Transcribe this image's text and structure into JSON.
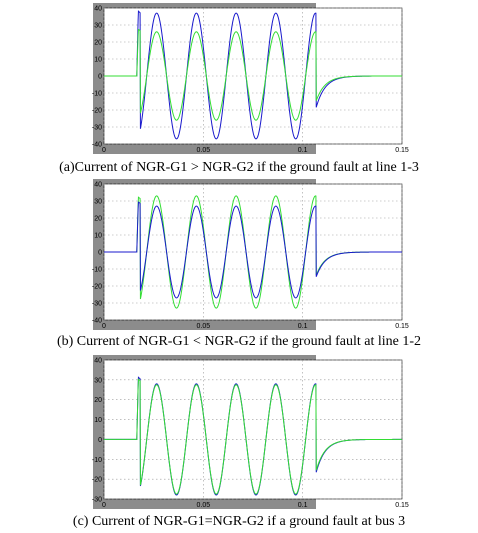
{
  "figures": [
    {
      "caption": "(a)Current of NGR-G1 > NGR-G2 if the ground fault at line 1-3"
    },
    {
      "caption": "(b)  Current of NGR-G1 < NGR-G2 if the ground fault at line 1-2"
    },
    {
      "caption": "(c) Current of NGR-G1=NGR-G2 if a ground fault at bus 3"
    }
  ],
  "colors": {
    "frame": "#8c8c8c",
    "plot_bg": "#ffffff",
    "blue_series": "#1a1acc",
    "green_series": "#33dd33",
    "grid": "#9a9a9a"
  },
  "chart_data": [
    {
      "type": "line",
      "xlim": [
        0,
        0.15
      ],
      "ylim": [
        -40,
        40
      ],
      "xticks": [
        "0",
        "0.05",
        "0.1",
        "0.15"
      ],
      "yticks": [
        "40",
        "30",
        "20",
        "10",
        "0",
        "-10",
        "-20",
        "-30",
        "-40"
      ],
      "grid": true,
      "series": [
        {
          "color": "#1a1acc",
          "fault_start": 0.0165,
          "fault_end": 0.1067,
          "amplitude": 37,
          "spike": 39,
          "tail_min": -19
        },
        {
          "color": "#33dd33",
          "fault_start": 0.0165,
          "fault_end": 0.1067,
          "amplitude": 26,
          "spike": 28,
          "tail_min": -15
        }
      ]
    },
    {
      "type": "line",
      "xlim": [
        0,
        0.15
      ],
      "ylim": [
        -40,
        40
      ],
      "xticks": [
        "0",
        "0.05",
        "0.1",
        "0.15"
      ],
      "yticks": [
        "40",
        "30",
        "20",
        "10",
        "0",
        "-10",
        "-20",
        "-30",
        "-40"
      ],
      "grid": true,
      "series": [
        {
          "color": "#33dd33",
          "fault_start": 0.0165,
          "fault_end": 0.1067,
          "amplitude": 33,
          "spike": 33,
          "tail_min": -14
        },
        {
          "color": "#1a1acc",
          "fault_start": 0.0165,
          "fault_end": 0.1067,
          "amplitude": 27,
          "spike": 30,
          "tail_min": -15
        }
      ]
    },
    {
      "type": "line",
      "xlim": [
        0,
        0.15
      ],
      "ylim": [
        -30,
        40
      ],
      "xticks": [
        "0",
        "0.05",
        "0.1",
        "0.15"
      ],
      "yticks": [
        "40",
        "30",
        "20",
        "10",
        "0",
        "-10",
        "-20",
        "-30"
      ],
      "grid": true,
      "series": [
        {
          "color": "#1a1acc",
          "fault_start": 0.0165,
          "fault_end": 0.1067,
          "amplitude": 28,
          "spike": 32,
          "tail_min": -17
        },
        {
          "color": "#33dd33",
          "fault_start": 0.0165,
          "fault_end": 0.1067,
          "amplitude": 27.5,
          "spike": 31,
          "tail_min": -16
        }
      ]
    }
  ]
}
